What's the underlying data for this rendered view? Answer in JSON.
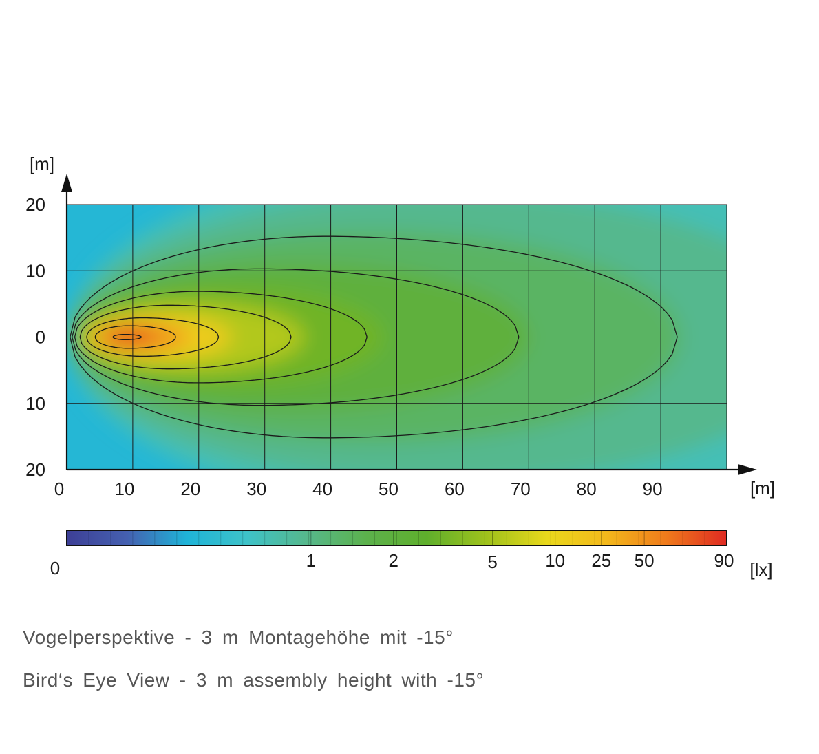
{
  "chart_data": {
    "type": "heatmap",
    "subtype": "isolux-diagram",
    "x_axis": {
      "unit_label": "[m]",
      "ticks": [
        0,
        10,
        20,
        30,
        40,
        50,
        60,
        70,
        80,
        90
      ],
      "range": [
        0,
        100
      ]
    },
    "y_axis": {
      "unit_label": "[m]",
      "tick_labels": [
        "20",
        "10",
        "0",
        "10",
        "20"
      ],
      "range": [
        -20,
        20
      ]
    },
    "grid": true,
    "peak": {
      "x": 9,
      "y": 0,
      "value": 90
    },
    "contours": [
      {
        "x_min": 0.5,
        "x_max": 92.5,
        "half_width": 15.2
      },
      {
        "x_min": 0.8,
        "x_max": 68.5,
        "half_width": 10.3
      },
      {
        "x_min": 1.2,
        "x_max": 45.5,
        "half_width": 6.9
      },
      {
        "x_min": 2.0,
        "x_max": 34.0,
        "half_width": 4.8
      },
      {
        "x_min": 3.0,
        "x_max": 23.0,
        "half_width": 2.9
      },
      {
        "x_min": 4.3,
        "x_max": 16.5,
        "half_width": 1.7
      },
      {
        "x_min": 7.0,
        "x_max": 11.3,
        "half_width": 0.4
      }
    ],
    "colorbar": {
      "unit_label": "[lx]",
      "labels": [
        "0",
        "1",
        "2",
        "5",
        "10",
        "25",
        "50",
        "90"
      ],
      "label_positions": [
        0,
        0.37,
        0.495,
        0.645,
        0.74,
        0.81,
        0.875,
        1.0
      ],
      "colors": [
        "#3d3f96",
        "#4560b0",
        "#1fb4d8",
        "#3ec2c8",
        "#56b88c",
        "#5cb14c",
        "#5faf2c",
        "#9fc21c",
        "#e9d81c",
        "#f3b81c",
        "#ef7a1c",
        "#df2a22"
      ]
    }
  },
  "caption": {
    "line_de": "Vogelperspektive - 3 m Montagehöhe mit -15°",
    "line_en": "Bird‘s Eye View - 3 m assembly height with -15°"
  }
}
